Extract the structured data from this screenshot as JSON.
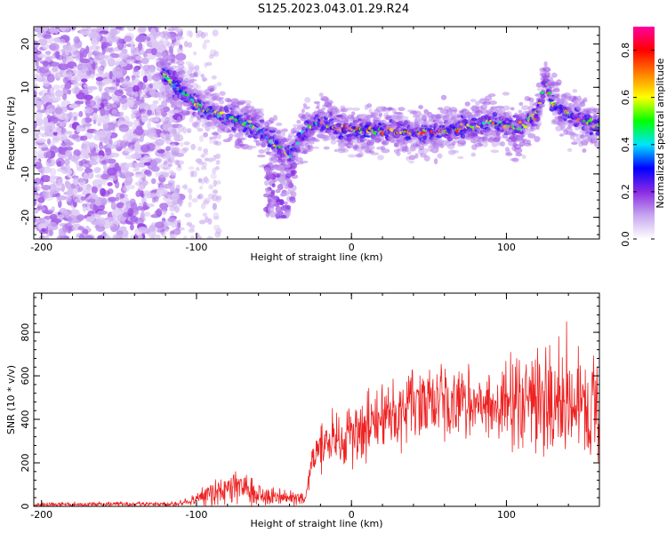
{
  "title": "S125.2023.043.01.29.R24",
  "chart_data": [
    {
      "type": "heatmap",
      "xlabel": "Height of straight line (km)",
      "ylabel": "Frequency (Hz)",
      "xlim": [
        -205,
        160
      ],
      "ylim": [
        -25,
        24
      ],
      "x_ticks": [
        -200,
        -100,
        0,
        100
      ],
      "y_ticks": [
        -20,
        -10,
        0,
        10,
        20
      ],
      "colorbar": {
        "label": "Normalized spectral amplitude",
        "range": [
          0,
          0.9
        ],
        "ticks": [
          0.0,
          0.2,
          0.4,
          0.6,
          0.8
        ],
        "colors": [
          "#ffffff",
          "#c7a6ef",
          "#8a2be2",
          "#0000ff",
          "#00e5ff",
          "#00ff00",
          "#ffff00",
          "#ff8000",
          "#ff0000",
          "#ff00a0"
        ]
      },
      "ridge": {
        "x": [
          -120,
          -110,
          -100,
          -90,
          -80,
          -70,
          -60,
          -50,
          -40,
          -30,
          -20,
          -10,
          0,
          20,
          40,
          60,
          80,
          90,
          100,
          110,
          120,
          125,
          130,
          140,
          150,
          160
        ],
        "y": [
          13,
          9,
          6,
          4,
          3,
          2,
          0,
          -3,
          -6,
          0,
          2,
          1,
          0,
          0,
          -0.5,
          0,
          1,
          2,
          1,
          1,
          4,
          12,
          6,
          4,
          2,
          1
        ]
      }
    },
    {
      "type": "line",
      "xlabel": "Height of straight line (km)",
      "ylabel": "SNR (10 * v/v)",
      "xlim": [
        -205,
        160
      ],
      "ylim": [
        0,
        980
      ],
      "x_ticks": [
        -200,
        -100,
        0,
        100
      ],
      "y_ticks": [
        0,
        200,
        400,
        600,
        800
      ],
      "color": "#ee2222",
      "envelope": {
        "x": [
          -205,
          -110,
          -100,
          -90,
          -80,
          -70,
          -60,
          -50,
          -40,
          -30,
          -25,
          -20,
          -10,
          0,
          10,
          20,
          30,
          40,
          60,
          80,
          100,
          120,
          140,
          150,
          160
        ],
        "y": [
          8,
          12,
          30,
          60,
          80,
          85,
          60,
          45,
          40,
          35,
          220,
          280,
          300,
          330,
          370,
          420,
          450,
          470,
          480,
          470,
          480,
          480,
          450,
          460,
          460
        ]
      }
    }
  ]
}
